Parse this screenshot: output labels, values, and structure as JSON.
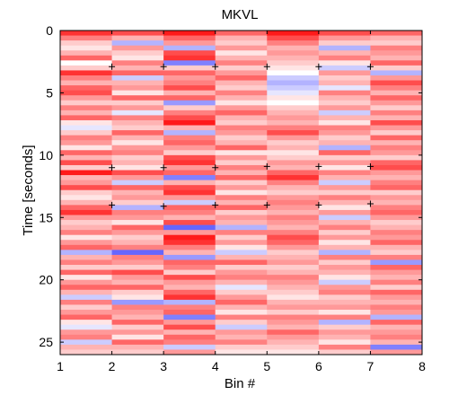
{
  "chart_data": {
    "type": "heatmap",
    "title": "MKVL",
    "xlabel": "Bin #",
    "ylabel": "Time [seconds]",
    "xlim": [
      1,
      8
    ],
    "ylim": [
      0,
      26
    ],
    "y_reversed": true,
    "x_ticks": [
      "1",
      "2",
      "3",
      "4",
      "5",
      "6",
      "7",
      "8"
    ],
    "y_ticks": [
      "0",
      "5",
      "10",
      "15",
      "20",
      "25"
    ],
    "colormap": [
      "#0000ff",
      "#ffffff",
      "#ff0000"
    ],
    "value_range": [
      -1,
      1
    ],
    "n_rows": 65,
    "columns": [
      {
        "bin": 1,
        "values": [
          0.8,
          0.5,
          0.2,
          0.1,
          0.3,
          0.6,
          0.0,
          0.2,
          0.8,
          0.5,
          0.3,
          0.6,
          0.7,
          0.4,
          0.2,
          0.5,
          0.3,
          0.6,
          0.1,
          -0.1,
          0.2,
          0.5,
          0.4,
          0.1,
          0.6,
          0.3,
          0.7,
          0.2,
          0.9,
          0.3,
          0.4,
          0.7,
          0.2,
          0.1,
          0.3,
          0.6,
          0.8,
          0.4,
          0.2,
          0.3,
          0.5,
          0.1,
          0.4,
          0.6,
          -0.3,
          0.3,
          0.5,
          0.2,
          0.6,
          0.1,
          0.4,
          0.6,
          0.3,
          -0.2,
          0.5,
          0.2,
          0.4,
          0.6,
          0.1,
          -0.1,
          0.4,
          0.5,
          -0.2,
          0.3,
          0.2
        ]
      },
      {
        "bin": 2,
        "values": [
          0.7,
          0.3,
          -0.3,
          0.4,
          0.2,
          0.1,
          0.5,
          0.3,
          0.6,
          -0.2,
          0.3,
          0.4,
          0.1,
          0.6,
          0.2,
          0.4,
          -0.1,
          0.5,
          0.3,
          0.2,
          0.6,
          0.3,
          0.1,
          0.4,
          0.5,
          0.2,
          0.3,
          0.1,
          0.7,
          0.4,
          -0.2,
          0.6,
          0.3,
          0.4,
          0.2,
          -0.3,
          0.5,
          0.4,
          0.1,
          0.6,
          0.4,
          0.2,
          0.3,
          0.5,
          -0.6,
          0.5,
          0.4,
          0.2,
          0.7,
          0.4,
          0.3,
          0.6,
          0.2,
          0.1,
          -0.4,
          0.5,
          0.4,
          0.3,
          0.6,
          0.2,
          0.4,
          0.1,
          0.6,
          0.3,
          0.2
        ]
      },
      {
        "bin": 3,
        "values": [
          0.9,
          0.6,
          0.4,
          -0.3,
          0.7,
          0.8,
          -0.5,
          0.2,
          0.6,
          0.4,
          0.5,
          0.7,
          0.3,
          0.6,
          -0.4,
          0.2,
          0.5,
          0.7,
          0.9,
          0.3,
          -0.3,
          0.5,
          0.6,
          0.4,
          0.2,
          0.7,
          0.8,
          0.4,
          0.6,
          -0.5,
          0.3,
          0.7,
          0.8,
          0.4,
          -0.2,
          0.6,
          0.5,
          0.3,
          0.7,
          -0.6,
          0.4,
          0.9,
          0.8,
          0.5,
          0.3,
          -0.4,
          0.6,
          0.5,
          0.2,
          0.7,
          0.4,
          0.3,
          0.6,
          0.8,
          -0.3,
          0.5,
          0.6,
          -0.5,
          0.4,
          0.7,
          0.3,
          0.6,
          0.5,
          -0.2,
          0.4
        ]
      },
      {
        "bin": 4,
        "values": [
          0.6,
          0.3,
          0.2,
          0.4,
          0.1,
          0.3,
          0.5,
          0.2,
          0.4,
          0.6,
          0.3,
          0.2,
          0.5,
          0.3,
          0.1,
          0.4,
          0.6,
          0.3,
          0.2,
          0.5,
          0.4,
          0.2,
          0.3,
          0.6,
          0.1,
          0.4,
          0.2,
          0.5,
          0.3,
          0.6,
          0.2,
          0.4,
          0.1,
          0.5,
          0.3,
          0.6,
          0.2,
          0.4,
          0.3,
          -0.3,
          0.5,
          0.2,
          0.4,
          0.1,
          -0.2,
          0.3,
          0.6,
          0.2,
          0.4,
          0.5,
          0.3,
          -0.1,
          0.2,
          0.4,
          0.6,
          0.3,
          0.1,
          0.5,
          0.2,
          -0.2,
          0.4,
          0.3,
          0.5,
          0.2,
          0.1
        ]
      },
      {
        "bin": 5,
        "values": [
          0.9,
          0.7,
          0.5,
          0.3,
          0.4,
          0.3,
          0.2,
          0.1,
          0.0,
          -0.2,
          -0.3,
          -0.2,
          -0.1,
          0.1,
          0.0,
          0.2,
          0.3,
          0.4,
          0.3,
          0.5,
          0.7,
          0.4,
          0.2,
          0.3,
          0.1,
          0.2,
          0.4,
          0.3,
          0.6,
          0.8,
          0.5,
          0.3,
          0.2,
          0.4,
          0.5,
          0.4,
          0.3,
          0.5,
          0.4,
          0.3,
          0.5,
          0.7,
          0.6,
          0.4,
          0.2,
          0.3,
          0.4,
          0.2,
          0.3,
          0.5,
          0.4,
          0.3,
          0.2,
          0.1,
          0.3,
          0.4,
          0.2,
          0.5,
          0.4,
          0.3,
          0.6,
          0.4,
          0.3,
          0.2,
          0.1
        ]
      },
      {
        "bin": 6,
        "values": [
          0.7,
          0.4,
          0.2,
          -0.3,
          0.3,
          0.5,
          0.1,
          -0.2,
          0.4,
          0.2,
          0.3,
          -0.1,
          0.5,
          0.3,
          0.2,
          0.4,
          -0.2,
          0.3,
          0.1,
          0.5,
          0.4,
          0.2,
          0.3,
          -0.3,
          0.6,
          0.2,
          0.4,
          0.1,
          0.5,
          0.3,
          -0.2,
          0.4,
          0.2,
          0.5,
          0.3,
          0.1,
          0.4,
          -0.2,
          0.3,
          0.5,
          0.2,
          0.4,
          0.1,
          0.3,
          -0.3,
          0.5,
          0.2,
          0.4,
          0.3,
          0.1,
          -0.2,
          0.4,
          0.5,
          0.2,
          0.3,
          0.4,
          0.1,
          0.5,
          -0.3,
          0.2,
          0.4,
          0.3,
          0.1,
          0.5,
          0.2
        ]
      },
      {
        "bin": 7,
        "values": [
          0.6,
          0.3,
          0.2,
          0.5,
          0.4,
          0.3,
          0.6,
          0.2,
          -0.3,
          0.4,
          0.7,
          0.5,
          0.3,
          0.6,
          0.4,
          0.2,
          0.5,
          0.3,
          0.7,
          0.4,
          0.2,
          0.6,
          0.3,
          0.5,
          0.4,
          0.2,
          0.6,
          0.7,
          0.4,
          0.3,
          0.5,
          0.6,
          0.2,
          0.4,
          0.3,
          0.5,
          0.6,
          0.4,
          0.2,
          0.3,
          0.5,
          0.4,
          0.6,
          0.3,
          0.2,
          0.5,
          -0.4,
          0.6,
          0.4,
          0.3,
          0.5,
          0.2,
          0.6,
          0.4,
          0.3,
          0.5,
          0.4,
          -0.3,
          0.6,
          0.3,
          0.4,
          0.5,
          0.3,
          -0.5,
          0.4
        ]
      }
    ],
    "markers": [
      {
        "x": 2,
        "y": 2.9
      },
      {
        "x": 3,
        "y": 2.9
      },
      {
        "x": 4,
        "y": 2.9
      },
      {
        "x": 5,
        "y": 2.9
      },
      {
        "x": 6,
        "y": 2.9
      },
      {
        "x": 7,
        "y": 2.9
      },
      {
        "x": 2,
        "y": 11.0
      },
      {
        "x": 3,
        "y": 11.0
      },
      {
        "x": 4,
        "y": 11.0
      },
      {
        "x": 5,
        "y": 10.9
      },
      {
        "x": 6,
        "y": 10.9
      },
      {
        "x": 7,
        "y": 10.9
      },
      {
        "x": 2,
        "y": 14.0
      },
      {
        "x": 3,
        "y": 14.1
      },
      {
        "x": 4,
        "y": 14.0
      },
      {
        "x": 5,
        "y": 14.0
      },
      {
        "x": 6,
        "y": 14.0
      },
      {
        "x": 7,
        "y": 13.9
      }
    ]
  }
}
